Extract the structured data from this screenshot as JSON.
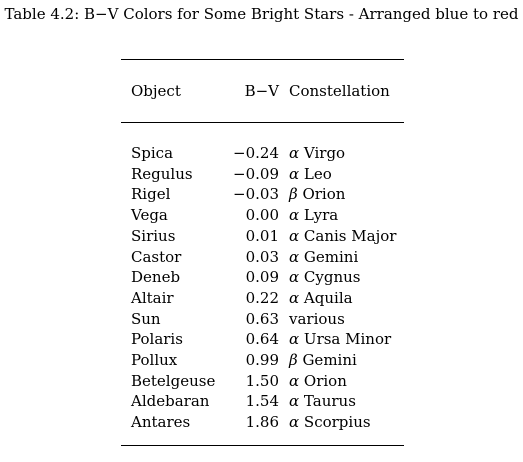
{
  "caption": "Table 4.2: B−V Colors for Some Bright Stars - Arranged blue to red",
  "table": {
    "headers": {
      "object": "Object",
      "bv": "B−V",
      "constellation": "Constellation"
    },
    "rows": [
      {
        "object": "Spica",
        "bv": "−0.24",
        "greek": "α",
        "constellation": "Virgo"
      },
      {
        "object": "Regulus",
        "bv": "−0.09",
        "greek": "α",
        "constellation": "Leo"
      },
      {
        "object": "Rigel",
        "bv": "−0.03",
        "greek": "β",
        "constellation": "Orion"
      },
      {
        "object": "Vega",
        "bv": "0.00",
        "greek": "α",
        "constellation": "Lyra"
      },
      {
        "object": "Sirius",
        "bv": "0.01",
        "greek": "α",
        "constellation": "Canis Major"
      },
      {
        "object": "Castor",
        "bv": "0.03",
        "greek": "α",
        "constellation": "Gemini"
      },
      {
        "object": "Deneb",
        "bv": "0.09",
        "greek": "α",
        "constellation": "Cygnus"
      },
      {
        "object": "Altair",
        "bv": "0.22",
        "greek": "α",
        "constellation": "Aquila"
      },
      {
        "object": "Sun",
        "bv": "0.63",
        "greek": "",
        "constellation": "various"
      },
      {
        "object": "Polaris",
        "bv": "0.64",
        "greek": "α",
        "constellation": "Ursa Minor"
      },
      {
        "object": "Pollux",
        "bv": "0.99",
        "greek": "β",
        "constellation": "Gemini"
      },
      {
        "object": "Betelgeuse",
        "bv": "1.50",
        "greek": "α",
        "constellation": "Orion"
      },
      {
        "object": "Aldebaran",
        "bv": "1.54",
        "greek": "α",
        "constellation": "Taurus"
      },
      {
        "object": "Antares",
        "bv": "1.86",
        "greek": "α",
        "constellation": "Scorpius"
      }
    ]
  }
}
